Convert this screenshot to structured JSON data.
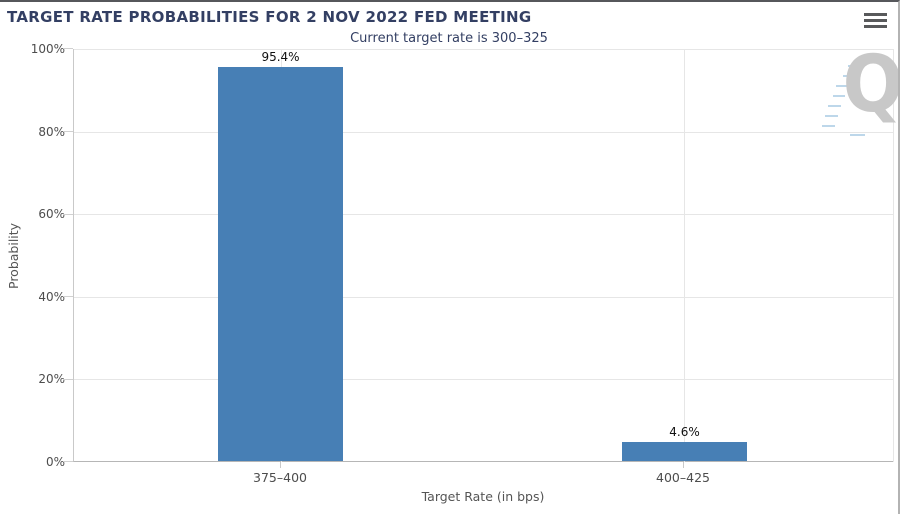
{
  "header": {
    "menu_icon": "hamburger-menu"
  },
  "chart_data": {
    "type": "bar",
    "title": "TARGET RATE PROBABILITIES FOR 2 NOV 2022 FED MEETING",
    "subtitle": "Current target rate is 300–325",
    "categories": [
      "375–400",
      "400–425"
    ],
    "values": [
      95.4,
      4.6
    ],
    "data_labels": [
      "95.4%",
      "4.6%"
    ],
    "xlabel": "Target Rate (in bps)",
    "ylabel": "Probability",
    "ylim": [
      0,
      100
    ],
    "yticks": [
      "0%",
      "20%",
      "40%",
      "60%",
      "80%",
      "100%"
    ],
    "grid": true,
    "legend": "none",
    "bar_color": "#477fb5",
    "watermark_letter": "Q"
  }
}
